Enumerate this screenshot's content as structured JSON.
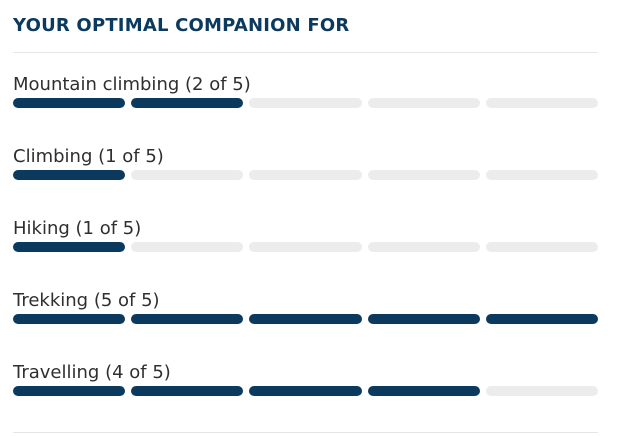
{
  "header": {
    "title": "YOUR OPTIMAL COMPANION FOR"
  },
  "activities": [
    {
      "label": "Mountain climbing (2 of 5)",
      "rating": 2,
      "max": 5
    },
    {
      "label": "Climbing (1 of 5)",
      "rating": 1,
      "max": 5
    },
    {
      "label": "Hiking (1 of 5)",
      "rating": 1,
      "max": 5
    },
    {
      "label": "Trekking (5 of 5)",
      "rating": 5,
      "max": 5
    },
    {
      "label": "Travelling (4 of 5)",
      "rating": 4,
      "max": 5
    }
  ],
  "colors": {
    "filled": "#0b3a5e",
    "empty": "#ececec",
    "heading": "#0b3a5e"
  }
}
